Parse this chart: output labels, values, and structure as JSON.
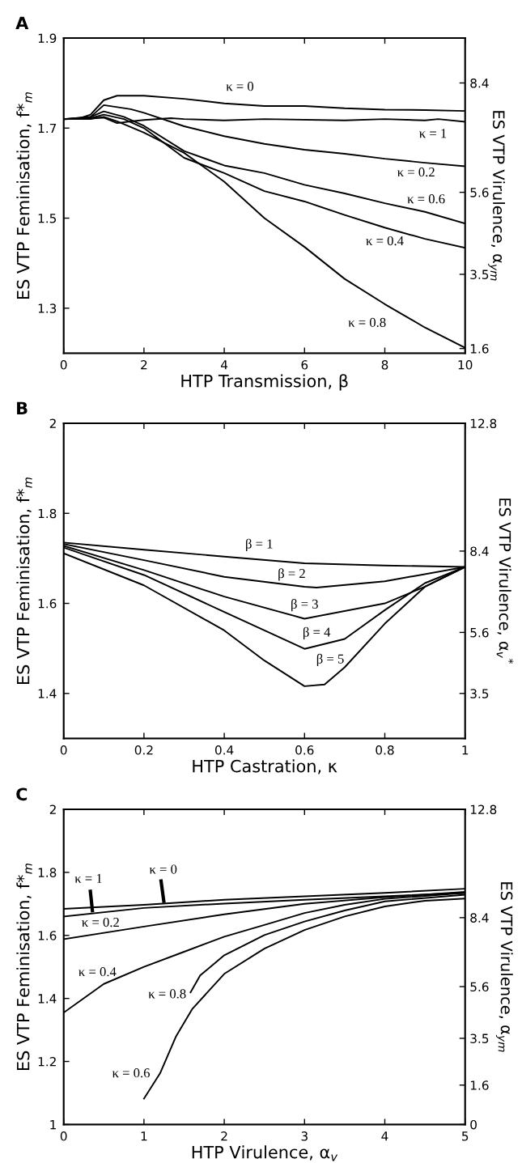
{
  "chart_data": [
    {
      "type": "line",
      "title": "A",
      "xlabel": "HTP Transmission, β",
      "ylabel": "ES VTP Feminisation, f*$_{m}$",
      "y2label": "ES VTP Virulence, α$_{ym}$",
      "xlim": [
        0,
        10
      ],
      "xticks": [
        0,
        2,
        4,
        6,
        8,
        10
      ],
      "ylim": [
        1.2,
        1.9
      ],
      "yticks": [
        1.3,
        1.5,
        1.7,
        1.9
      ],
      "y2lim": [
        1.48,
        9.55
      ],
      "y2ticks": [
        8.4,
        5.6,
        3.5,
        1.6
      ],
      "series": [
        {
          "color": "#000000",
          "x": [
            0,
            0.33,
            0.67,
            1,
            1.33,
            2,
            3,
            4,
            5,
            6,
            7,
            8,
            9,
            10
          ],
          "values": [
            1.72,
            1.72,
            1.73,
            1.762,
            1.772,
            1.772,
            1.765,
            1.755,
            1.749,
            1.749,
            1.744,
            1.741,
            1.74,
            1.738
          ]
        },
        {
          "color": "#000000",
          "x": [
            0,
            1,
            1.33,
            1.67,
            2,
            2.67,
            3,
            4,
            5,
            7,
            8,
            9,
            9.33,
            10
          ],
          "values": [
            1.72,
            1.723,
            1.711,
            1.715,
            1.718,
            1.722,
            1.72,
            1.717,
            1.72,
            1.717,
            1.72,
            1.717,
            1.72,
            1.714
          ]
        },
        {
          "color": "#000000",
          "x": [
            0,
            0.67,
            1,
            1.67,
            2,
            3,
            4,
            5,
            6,
            7,
            8,
            9,
            10
          ],
          "values": [
            1.72,
            1.725,
            1.751,
            1.742,
            1.734,
            1.704,
            1.682,
            1.665,
            1.652,
            1.643,
            1.632,
            1.623,
            1.615
          ]
        },
        {
          "color": "#000000",
          "x": [
            0,
            0.67,
            1,
            1.5,
            2,
            3,
            4,
            5,
            6,
            7,
            8,
            9,
            10
          ],
          "values": [
            1.72,
            1.725,
            1.737,
            1.725,
            1.705,
            1.649,
            1.617,
            1.6,
            1.574,
            1.555,
            1.533,
            1.514,
            1.488
          ]
        },
        {
          "color": "#000000",
          "x": [
            0,
            0.67,
            1,
            1.5,
            2,
            3,
            4,
            5,
            6,
            7,
            8,
            9,
            10
          ],
          "values": [
            1.72,
            1.722,
            1.73,
            1.72,
            1.7,
            1.634,
            1.6,
            1.56,
            1.537,
            1.507,
            1.479,
            1.454,
            1.434
          ]
        },
        {
          "color": "#000000",
          "x": [
            0,
            0.67,
            1,
            1.33,
            2,
            3,
            4,
            5,
            6,
            7,
            8,
            9,
            10
          ],
          "values": [
            1.72,
            1.72,
            1.725,
            1.715,
            1.69,
            1.645,
            1.581,
            1.5,
            1.436,
            1.365,
            1.309,
            1.257,
            1.212
          ]
        }
      ],
      "annotations": [
        "κ = 0",
        "κ = 1",
        "κ = 0.2",
        "κ = 0.6",
        "κ = 0.4",
        "κ = 0.8"
      ]
    },
    {
      "type": "line",
      "title": "B",
      "xlabel": "HTP Castration, κ",
      "ylabel": "ES VTP Feminisation, f*$_{m}$",
      "y2label": "ES VTP Virulence, α$_{v}$$^{*}$",
      "xlim": [
        0,
        1
      ],
      "xticks": [
        0,
        0.2,
        0.4,
        0.6,
        0.8,
        1
      ],
      "ylim": [
        1.3,
        2
      ],
      "yticks": [
        1.4,
        1.6,
        1.8,
        2
      ],
      "y2lim": [
        1.95,
        12.8
      ],
      "y2ticks": [
        12.8,
        8.4,
        5.6,
        3.5
      ],
      "series": [
        {
          "color": "#000000",
          "x": [
            0,
            0.2,
            0.4,
            0.6,
            0.8,
            1
          ],
          "values": [
            1.735,
            1.719,
            1.704,
            1.689,
            1.684,
            1.681
          ]
        },
        {
          "color": "#000000",
          "x": [
            0,
            0.2,
            0.4,
            0.6,
            0.63,
            0.8,
            1
          ],
          "values": [
            1.732,
            1.696,
            1.659,
            1.637,
            1.635,
            1.649,
            1.681
          ]
        },
        {
          "color": "#000000",
          "x": [
            0,
            0.2,
            0.4,
            0.6,
            0.8,
            0.9,
            1
          ],
          "values": [
            1.728,
            1.674,
            1.615,
            1.566,
            1.6,
            1.637,
            1.681
          ]
        },
        {
          "color": "#000000",
          "x": [
            0,
            0.2,
            0.4,
            0.6,
            0.7,
            0.8,
            0.9,
            1
          ],
          "values": [
            1.724,
            1.663,
            1.581,
            1.499,
            1.521,
            1.585,
            1.645,
            1.681
          ]
        },
        {
          "color": "#000000",
          "x": [
            0,
            0.2,
            0.4,
            0.5,
            0.6,
            0.65,
            0.7,
            0.8,
            0.9,
            1
          ],
          "values": [
            1.711,
            1.64,
            1.54,
            1.473,
            1.416,
            1.42,
            1.458,
            1.555,
            1.637,
            1.681
          ]
        }
      ],
      "annotations": [
        "β = 1",
        "β = 2",
        "β = 3",
        "β = 4",
        "β = 5"
      ]
    },
    {
      "type": "line",
      "title": "C",
      "xlabel": "HTP Virulence, α$_{v}$",
      "ylabel": "ES VTP Feminisation, f*$_{m}$",
      "y2label": "ES VTP Virulence, α$_{ym}$",
      "xlim": [
        0,
        5
      ],
      "xticks": [
        0,
        1,
        2,
        3,
        4,
        5
      ],
      "ylim": [
        1,
        2
      ],
      "yticks": [
        1,
        1.2,
        1.4,
        1.6,
        1.8,
        2
      ],
      "y2lim": [
        0,
        12.8
      ],
      "y2ticks": [
        12.8,
        8.4,
        5.6,
        3.5,
        1.6,
        0
      ],
      "series": [
        {
          "color": "#000000",
          "x": [
            0,
            1,
            2,
            3,
            4,
            5
          ],
          "values": [
            1.684,
            1.697,
            1.713,
            1.724,
            1.735,
            1.748
          ]
        },
        {
          "color": "#000000",
          "x": [
            0,
            1,
            2,
            3,
            4,
            5
          ],
          "values": [
            1.66,
            1.687,
            1.701,
            1.713,
            1.724,
            1.735
          ]
        },
        {
          "color": "#000000",
          "x": [
            0,
            1,
            2,
            3,
            4,
            5
          ],
          "values": [
            1.588,
            1.628,
            1.667,
            1.7,
            1.721,
            1.738
          ]
        },
        {
          "color": "#000000",
          "x": [
            0,
            0.5,
            1,
            1.5,
            2,
            2.5,
            3,
            3.5,
            4,
            5
          ],
          "values": [
            1.355,
            1.446,
            1.5,
            1.548,
            1.596,
            1.633,
            1.671,
            1.697,
            1.716,
            1.735
          ]
        },
        {
          "color": "#000000",
          "x": [
            1.58,
            1.7,
            2,
            2.5,
            3,
            3.5,
            4,
            5
          ],
          "values": [
            1.419,
            1.473,
            1.537,
            1.601,
            1.644,
            1.679,
            1.708,
            1.729
          ]
        },
        {
          "color": "#000000",
          "x": [
            1.0,
            1.2,
            1.4,
            1.6,
            2,
            2.5,
            3,
            3.5,
            4,
            4.5,
            5
          ],
          "values": [
            1.082,
            1.162,
            1.28,
            1.366,
            1.478,
            1.558,
            1.617,
            1.66,
            1.692,
            1.71,
            1.717
          ]
        }
      ],
      "annotations": [
        "κ = 1",
        "κ = 0",
        "κ = 0.2",
        "κ = 0.4",
        "κ = 0.8",
        "κ = 0.6"
      ]
    }
  ]
}
